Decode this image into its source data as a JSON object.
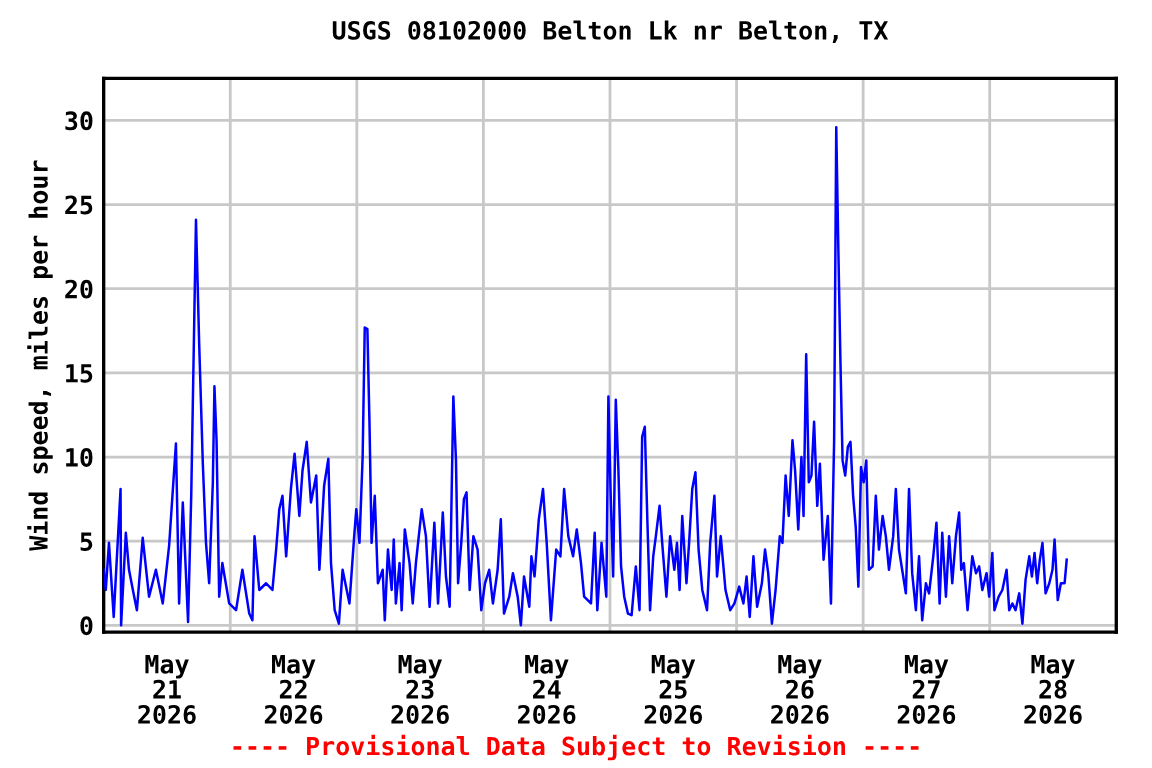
{
  "chart_data": {
    "type": "line",
    "title": "USGS 08102000 Belton Lk nr Belton, TX",
    "ylabel": "Wind speed, miles per hour",
    "annotations": [
      "---- Provisional Data Subject to Revision ----"
    ],
    "xlim": [
      "2026-05-21T00:00",
      "2026-05-29T00:00"
    ],
    "xticks": [
      {
        "value": "2026-05-21T12:00",
        "label": "May\n21\n2026"
      },
      {
        "value": "2026-05-22T12:00",
        "label": "May\n22\n2026"
      },
      {
        "value": "2026-05-23T12:00",
        "label": "May\n23\n2026"
      },
      {
        "value": "2026-05-24T12:00",
        "label": "May\n24\n2026"
      },
      {
        "value": "2026-05-25T12:00",
        "label": "May\n25\n2026"
      },
      {
        "value": "2026-05-26T12:00",
        "label": "May\n26\n2026"
      },
      {
        "value": "2026-05-27T12:00",
        "label": "May\n27\n2026"
      },
      {
        "value": "2026-05-28T12:00",
        "label": "May\n28\n2026"
      },
      {
        "value": "2026-05-22T00:00",
        "label": null
      },
      {
        "value": "2026-05-23T00:00",
        "label": null
      },
      {
        "value": "2026-05-24T00:00",
        "label": null
      },
      {
        "value": "2026-05-25T00:00",
        "label": null
      },
      {
        "value": "2026-05-26T00:00",
        "label": null
      },
      {
        "value": "2026-05-27T00:00",
        "label": null
      },
      {
        "value": "2026-05-28T00:00",
        "label": null
      }
    ],
    "ylim": [
      -0.4,
      32.5
    ],
    "yticks": [
      0,
      5,
      10,
      15,
      20,
      25,
      30
    ],
    "grid": true,
    "legend": false,
    "marker": "none",
    "line_style": "solid",
    "series": [
      {
        "color": "#0000ff",
        "x": [
          "2026-05-21T00:00",
          "2026-05-21T00:24",
          "2026-05-21T01:00",
          "2026-05-21T01:54",
          "2026-05-21T03:12",
          "2026-05-21T03:18",
          "2026-05-21T04:12",
          "2026-05-21T04:48",
          "2026-05-21T05:36",
          "2026-05-21T06:18",
          "2026-05-21T07:24",
          "2026-05-21T08:36",
          "2026-05-21T09:54",
          "2026-05-21T11:12",
          "2026-05-21T12:24",
          "2026-05-21T13:42",
          "2026-05-21T14:18",
          "2026-05-21T15:00",
          "2026-05-21T16:00",
          "2026-05-21T16:36",
          "2026-05-21T17:30",
          "2026-05-21T18:06",
          "2026-05-21T18:48",
          "2026-05-21T19:24",
          "2026-05-21T20:00",
          "2026-05-21T20:42",
          "2026-05-21T21:00",
          "2026-05-21T21:24",
          "2026-05-21T21:54",
          "2026-05-21T22:30",
          "2026-05-21T23:48",
          "2026-05-22T01:06",
          "2026-05-22T02:18",
          "2026-05-22T03:36",
          "2026-05-22T04:12",
          "2026-05-22T04:36",
          "2026-05-22T05:30",
          "2026-05-22T06:48",
          "2026-05-22T08:00",
          "2026-05-22T08:42",
          "2026-05-22T09:18",
          "2026-05-22T09:54",
          "2026-05-22T10:36",
          "2026-05-22T11:30",
          "2026-05-22T12:12",
          "2026-05-22T13:06",
          "2026-05-22T13:42",
          "2026-05-22T14:30",
          "2026-05-22T15:18",
          "2026-05-22T16:18",
          "2026-05-22T16:54",
          "2026-05-22T17:48",
          "2026-05-22T18:36",
          "2026-05-22T19:06",
          "2026-05-22T19:48",
          "2026-05-22T20:36",
          "2026-05-22T21:18",
          "2026-05-22T22:36",
          "2026-05-22T23:30",
          "2026-05-22T23:54",
          "2026-05-23T00:30",
          "2026-05-23T01:06",
          "2026-05-23T01:30",
          "2026-05-23T02:00",
          "2026-05-23T02:24",
          "2026-05-23T02:48",
          "2026-05-23T03:24",
          "2026-05-23T04:00",
          "2026-05-23T04:54",
          "2026-05-23T05:18",
          "2026-05-23T05:54",
          "2026-05-23T06:36",
          "2026-05-23T07:00",
          "2026-05-23T07:24",
          "2026-05-23T08:06",
          "2026-05-23T08:30",
          "2026-05-23T09:06",
          "2026-05-23T10:00",
          "2026-05-23T10:36",
          "2026-05-23T11:12",
          "2026-05-23T12:18",
          "2026-05-23T13:06",
          "2026-05-23T13:48",
          "2026-05-23T14:42",
          "2026-05-23T15:24",
          "2026-05-23T16:18",
          "2026-05-23T16:54",
          "2026-05-23T17:36",
          "2026-05-23T18:18",
          "2026-05-23T18:48",
          "2026-05-23T19:12",
          "2026-05-23T19:48",
          "2026-05-23T20:18",
          "2026-05-23T20:48",
          "2026-05-23T21:24",
          "2026-05-23T22:06",
          "2026-05-23T22:54",
          "2026-05-23T23:36",
          "2026-05-24T00:18",
          "2026-05-24T01:06",
          "2026-05-24T01:48",
          "2026-05-24T02:42",
          "2026-05-24T03:18",
          "2026-05-24T03:54",
          "2026-05-24T04:54",
          "2026-05-24T05:36",
          "2026-05-24T06:30",
          "2026-05-24T07:06",
          "2026-05-24T07:42",
          "2026-05-24T08:42",
          "2026-05-24T09:06",
          "2026-05-24T09:42",
          "2026-05-24T10:30",
          "2026-05-24T11:18",
          "2026-05-24T12:00",
          "2026-05-24T12:48",
          "2026-05-24T13:48",
          "2026-05-24T14:36",
          "2026-05-24T15:18",
          "2026-05-24T16:06",
          "2026-05-24T17:00",
          "2026-05-24T17:42",
          "2026-05-24T18:30",
          "2026-05-24T19:06",
          "2026-05-24T20:24",
          "2026-05-24T21:06",
          "2026-05-24T21:36",
          "2026-05-24T22:24",
          "2026-05-24T23:18",
          "2026-05-24T23:42",
          "2026-05-25T00:06",
          "2026-05-25T00:36",
          "2026-05-25T01:06",
          "2026-05-25T01:36",
          "2026-05-25T02:06",
          "2026-05-25T02:42",
          "2026-05-25T03:24",
          "2026-05-25T04:06",
          "2026-05-25T04:54",
          "2026-05-25T05:36",
          "2026-05-25T06:06",
          "2026-05-25T06:36",
          "2026-05-25T07:06",
          "2026-05-25T07:36",
          "2026-05-25T08:12",
          "2026-05-25T08:42",
          "2026-05-25T09:24",
          "2026-05-25T09:54",
          "2026-05-25T10:42",
          "2026-05-25T11:24",
          "2026-05-25T12:12",
          "2026-05-25T12:42",
          "2026-05-25T13:12",
          "2026-05-25T13:42",
          "2026-05-25T14:30",
          "2026-05-25T15:00",
          "2026-05-25T15:36",
          "2026-05-25T16:12",
          "2026-05-25T16:48",
          "2026-05-25T17:30",
          "2026-05-25T18:24",
          "2026-05-25T19:00",
          "2026-05-25T19:48",
          "2026-05-25T20:18",
          "2026-05-25T21:00",
          "2026-05-25T21:54",
          "2026-05-25T22:48",
          "2026-05-25T23:36",
          "2026-05-26T00:30",
          "2026-05-26T01:18",
          "2026-05-26T01:54",
          "2026-05-26T02:30",
          "2026-05-26T03:12",
          "2026-05-26T03:54",
          "2026-05-26T04:48",
          "2026-05-26T05:24",
          "2026-05-26T06:00",
          "2026-05-26T06:42",
          "2026-05-26T07:24",
          "2026-05-26T08:12",
          "2026-05-26T08:42",
          "2026-05-26T09:18",
          "2026-05-26T09:54",
          "2026-05-26T10:36",
          "2026-05-26T11:06",
          "2026-05-26T11:42",
          "2026-05-26T12:18",
          "2026-05-26T12:42",
          "2026-05-26T13:12",
          "2026-05-26T13:42",
          "2026-05-26T14:12",
          "2026-05-26T14:42",
          "2026-05-26T15:18",
          "2026-05-26T15:48",
          "2026-05-26T16:30",
          "2026-05-26T17:18",
          "2026-05-26T17:54",
          "2026-05-26T18:30",
          "2026-05-26T18:54",
          "2026-05-26T19:18",
          "2026-05-26T19:42",
          "2026-05-26T20:06",
          "2026-05-26T20:36",
          "2026-05-26T21:06",
          "2026-05-26T21:36",
          "2026-05-26T22:06",
          "2026-05-26T22:36",
          "2026-05-26T23:06",
          "2026-05-26T23:36",
          "2026-05-27T00:06",
          "2026-05-27T00:36",
          "2026-05-27T01:06",
          "2026-05-27T01:48",
          "2026-05-27T02:24",
          "2026-05-27T03:00",
          "2026-05-27T03:42",
          "2026-05-27T04:18",
          "2026-05-27T04:54",
          "2026-05-27T05:42",
          "2026-05-27T06:12",
          "2026-05-27T06:48",
          "2026-05-27T07:24",
          "2026-05-27T08:06",
          "2026-05-27T08:42",
          "2026-05-27T09:18",
          "2026-05-27T10:00",
          "2026-05-27T10:36",
          "2026-05-27T11:12",
          "2026-05-27T11:54",
          "2026-05-27T12:30",
          "2026-05-27T13:18",
          "2026-05-27T13:54",
          "2026-05-27T14:30",
          "2026-05-27T15:00",
          "2026-05-27T15:42",
          "2026-05-27T16:18",
          "2026-05-27T16:54",
          "2026-05-27T17:36",
          "2026-05-27T18:12",
          "2026-05-27T18:36",
          "2026-05-27T19:06",
          "2026-05-27T19:48",
          "2026-05-27T20:42",
          "2026-05-27T21:24",
          "2026-05-27T22:00",
          "2026-05-27T22:36",
          "2026-05-27T23:24",
          "2026-05-27T23:54",
          "2026-05-28T00:30",
          "2026-05-28T00:54",
          "2026-05-28T01:42",
          "2026-05-28T02:24",
          "2026-05-28T03:12",
          "2026-05-28T03:42",
          "2026-05-28T04:18",
          "2026-05-28T04:54",
          "2026-05-28T05:36",
          "2026-05-28T06:12",
          "2026-05-28T06:48",
          "2026-05-28T07:30",
          "2026-05-28T08:00",
          "2026-05-28T08:30",
          "2026-05-28T09:00",
          "2026-05-28T09:30",
          "2026-05-28T10:00",
          "2026-05-28T10:36",
          "2026-05-28T11:18",
          "2026-05-28T11:54",
          "2026-05-28T12:18",
          "2026-05-28T12:54",
          "2026-05-28T13:30",
          "2026-05-28T14:12",
          "2026-05-28T14:36"
        ],
        "values": [
          3.3,
          2.1,
          4.9,
          0.5,
          8.1,
          0,
          5.5,
          3.3,
          2,
          0.9,
          5.2,
          1.7,
          3.3,
          1.3,
          4.7,
          10.8,
          1.3,
          7.3,
          0.2,
          7.7,
          24.1,
          16.8,
          9.6,
          4.9,
          2.5,
          8.5,
          14.2,
          11,
          1.7,
          3.7,
          1.3,
          0.9,
          3.3,
          0.7,
          0.3,
          5.3,
          2.1,
          2.5,
          2.1,
          4.5,
          6.9,
          7.7,
          4.1,
          8.1,
          10.2,
          6.5,
          9.2,
          10.9,
          7.3,
          8.9,
          3.3,
          8.3,
          9.9,
          3.7,
          0.9,
          0.1,
          3.3,
          1.3,
          5.3,
          6.9,
          4.9,
          10,
          17.7,
          17.6,
          12,
          4.9,
          7.7,
          2.5,
          3.3,
          0.3,
          4.5,
          2.1,
          5.1,
          1.3,
          3.7,
          0.9,
          5.7,
          3.7,
          1.3,
          3.7,
          6.9,
          5.3,
          1.1,
          6.1,
          1.3,
          6.7,
          2.9,
          1.1,
          13.6,
          9.8,
          2.5,
          4.9,
          7.5,
          7.9,
          2.1,
          5.3,
          4.5,
          0.9,
          2.5,
          3.3,
          1.3,
          3.3,
          6.3,
          0.7,
          1.7,
          3.1,
          1.7,
          0,
          2.9,
          1.1,
          4.1,
          2.9,
          6.3,
          8.1,
          4.9,
          0.3,
          4.5,
          4.1,
          8.1,
          5.3,
          4.1,
          5.7,
          3.7,
          1.7,
          1.3,
          5.5,
          0.9,
          4.9,
          1.7,
          13.6,
          8.1,
          2.9,
          13.4,
          9.2,
          3.5,
          1.7,
          0.7,
          0.6,
          3.5,
          0.9,
          11.2,
          11.8,
          6.1,
          0.9,
          4.1,
          5.3,
          7.1,
          4.9,
          1.7,
          5.3,
          3.3,
          4.9,
          2.1,
          6.5,
          2.5,
          4.9,
          8.1,
          9.1,
          4.5,
          2.1,
          0.9,
          4.9,
          7.7,
          2.9,
          5.3,
          2.1,
          0.9,
          1.3,
          2.3,
          1.3,
          2.9,
          0.5,
          4.1,
          1.1,
          2.5,
          4.5,
          3.1,
          0.1,
          2.1,
          5.3,
          4.9,
          8.9,
          6.5,
          11,
          9.2,
          5.7,
          10,
          6.5,
          16.1,
          8.5,
          8.9,
          12.1,
          7.1,
          9.6,
          3.9,
          6.5,
          1.3,
          11,
          29.6,
          22.3,
          15.6,
          9.8,
          8.9,
          10.6,
          10.9,
          7.7,
          5.8,
          2.3,
          9.4,
          8.5,
          9.8,
          3.3,
          3.5,
          7.7,
          4.5,
          6.5,
          5.3,
          3.3,
          5.3,
          8.1,
          4.5,
          3.3,
          1.9,
          8.1,
          3.1,
          0.9,
          4.1,
          0.3,
          2.5,
          1.9,
          4.1,
          6.1,
          1.3,
          5.5,
          1.7,
          5.3,
          2.5,
          5.3,
          6.7,
          3.3,
          3.7,
          0.9,
          4.1,
          3.1,
          3.5,
          2.1,
          3.1,
          1.7,
          4.3,
          0.9,
          1.7,
          2.1,
          3.3,
          0.9,
          1.3,
          0.9,
          1.9,
          0.1,
          2.7,
          4.1,
          2.9,
          4.3,
          2.5,
          3.9,
          4.9,
          1.9,
          2.5,
          3.3,
          5.1,
          1.5,
          2.5,
          2.5,
          3.9
        ]
      }
    ]
  }
}
